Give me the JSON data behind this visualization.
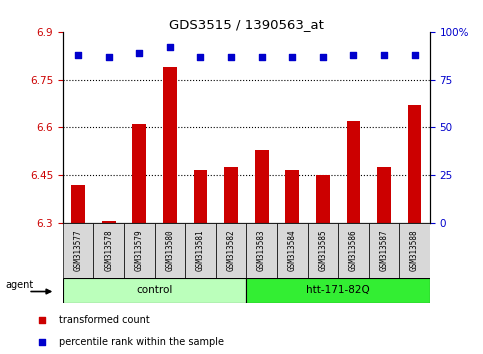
{
  "title": "GDS3515 / 1390563_at",
  "samples": [
    "GSM313577",
    "GSM313578",
    "GSM313579",
    "GSM313580",
    "GSM313581",
    "GSM313582",
    "GSM313583",
    "GSM313584",
    "GSM313585",
    "GSM313586",
    "GSM313587",
    "GSM313588"
  ],
  "bar_values": [
    6.42,
    6.305,
    6.61,
    6.79,
    6.465,
    6.475,
    6.53,
    6.465,
    6.45,
    6.62,
    6.475,
    6.67
  ],
  "percentile_values": [
    88,
    87,
    89,
    92,
    87,
    87,
    87,
    87,
    87,
    88,
    88,
    88
  ],
  "bar_color": "#cc0000",
  "dot_color": "#0000cc",
  "ylim_left": [
    6.3,
    6.9
  ],
  "ylim_right": [
    0,
    100
  ],
  "yticks_left": [
    6.3,
    6.45,
    6.6,
    6.75,
    6.9
  ],
  "ytick_labels_left": [
    "6.3",
    "6.45",
    "6.6",
    "6.75",
    "6.9"
  ],
  "yticks_right": [
    0,
    25,
    50,
    75,
    100
  ],
  "ytick_labels_right": [
    "0",
    "25",
    "50",
    "75",
    "100%"
  ],
  "hlines": [
    6.45,
    6.6,
    6.75
  ],
  "groups": [
    {
      "label": "control",
      "start": 0,
      "end": 6,
      "color": "#bbffbb"
    },
    {
      "label": "htt-171-82Q",
      "start": 6,
      "end": 12,
      "color": "#33ee33"
    }
  ],
  "agent_label": "agent",
  "legend": [
    {
      "color": "#cc0000",
      "label": "transformed count"
    },
    {
      "color": "#0000cc",
      "label": "percentile rank within the sample"
    }
  ],
  "bar_width": 0.45,
  "plot_bg_color": "#ffffff",
  "tick_label_color_left": "#cc0000",
  "tick_label_color_right": "#0000cc",
  "sample_box_color": "#d8d8d8",
  "n_samples": 12,
  "n_control": 6,
  "baseline": 6.3
}
